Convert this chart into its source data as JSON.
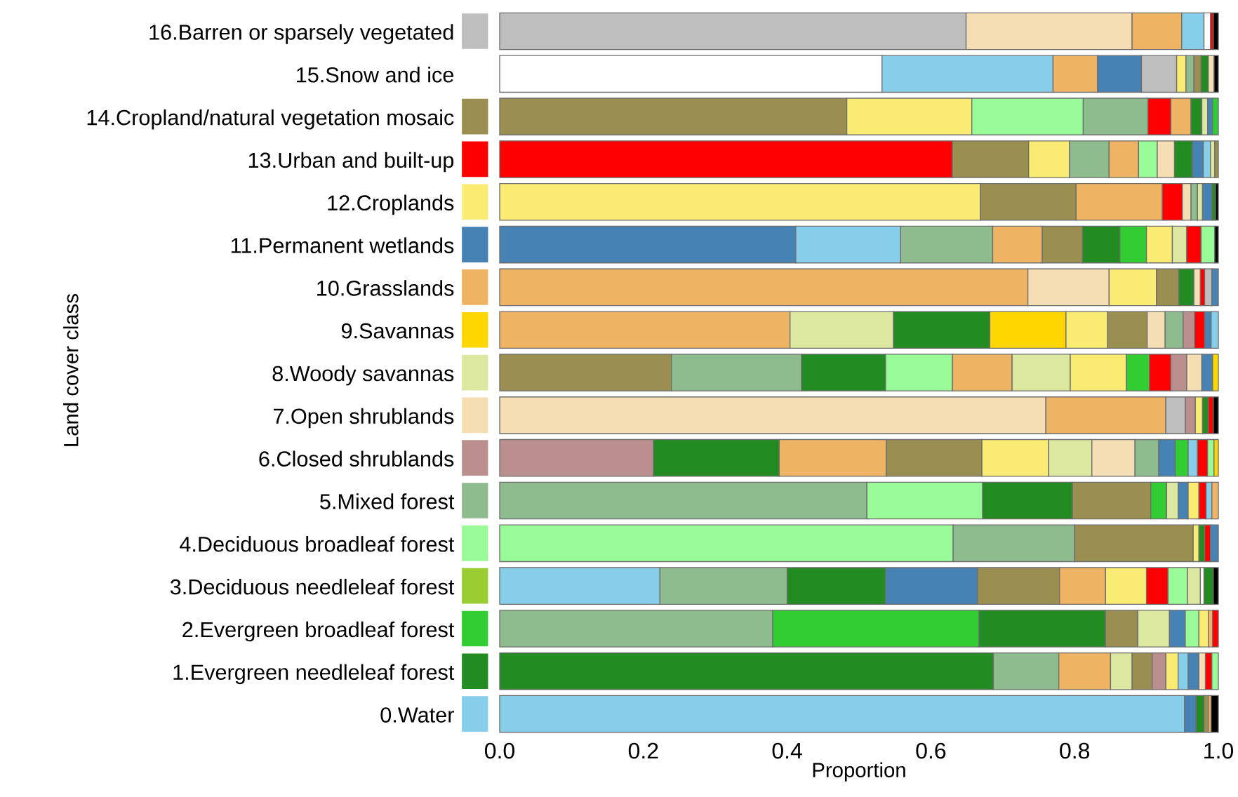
{
  "chart_data": {
    "type": "bar",
    "orientation": "horizontal",
    "stacked": true,
    "xlabel": "Proportion",
    "ylabel": "Land cover class",
    "categories": [
      "16.Barren or sparsely vegetated",
      "15.Snow and ice",
      "14.Cropland/natural vegetation mosaic",
      "13.Urban and built-up",
      "12.Croplands",
      "11.Permanent wetlands",
      "10.Grasslands",
      "9.Savannas",
      "8.Woody savannas",
      "7.Open shrublands",
      "6.Closed shrublands",
      "5.Mixed forest",
      "4.Deciduous broadleaf forest",
      "3.Deciduous needleleaf forest",
      "2.Evergreen broadleaf forest",
      "1.Evergreen needleleaf forest",
      "0.Water"
    ],
    "colors": [
      "#bebebe",
      "#ffffff",
      "#9a8f50",
      "#ff0000",
      "#faeb73",
      "#4682b4",
      "#eeb464",
      "#ffd700",
      "#dce8a0",
      "#f5deb3",
      "#bc8f8f",
      "#8fbc8f",
      "#98fb98",
      "#9acd32",
      "#32cd32",
      "#228b22",
      "#87ceeb"
    ],
    "xlim": [
      0,
      1
    ],
    "xticks": [
      {
        "value": 0,
        "label": "0.0"
      },
      {
        "value": 0.2,
        "label": "0.2"
      },
      {
        "value": 0.4,
        "label": "0.4"
      },
      {
        "value": 0.6,
        "label": "0.6"
      },
      {
        "value": 0.8,
        "label": "0.8"
      },
      {
        "value": 1,
        "label": "1.0"
      }
    ],
    "series": [
      {
        "values": [
          0.649,
          0.532,
          0.483,
          0.63,
          0.669,
          0.412,
          0.735,
          0.404,
          0.239,
          0.76,
          0.214,
          0.511,
          0.631,
          0.223,
          0.38,
          0.687,
          0.953
        ],
        "colors": [
          "#bebebe",
          "#ffffff",
          "#9a8f50",
          "#ff0000",
          "#faeb73",
          "#4682b4",
          "#eeb464",
          "#eeb464",
          "#9a8f50",
          "#f5deb3",
          "#bc8f8f",
          "#8fbc8f",
          "#98fb98",
          "#87ceeb",
          "#8fbc8f",
          "#228b22",
          "#87ceeb"
        ]
      },
      {
        "values": [
          0.231,
          0.238,
          0.174,
          0.106,
          0.133,
          0.146,
          0.113,
          0.144,
          0.181,
          0.167,
          0.175,
          0.161,
          0.169,
          0.177,
          0.287,
          0.091,
          0.016
        ],
        "colors": [
          "#f5deb3",
          "#87ceeb",
          "#faeb73",
          "#9a8f50",
          "#9a8f50",
          "#87ceeb",
          "#f5deb3",
          "#dce8a0",
          "#8fbc8f",
          "#eeb464",
          "#228b22",
          "#98fb98",
          "#8fbc8f",
          "#8fbc8f",
          "#32cd32",
          "#8fbc8f",
          "#4682b4"
        ]
      },
      {
        "values": [
          0.069,
          0.062,
          0.155,
          0.057,
          0.12,
          0.128,
          0.066,
          0.134,
          0.117,
          0.027,
          0.149,
          0.125,
          0.165,
          0.137,
          0.176,
          0.072,
          0.011
        ],
        "colors": [
          "#eeb464",
          "#eeb464",
          "#98fb98",
          "#faeb73",
          "#eeb464",
          "#8fbc8f",
          "#faeb73",
          "#228b22",
          "#228b22",
          "#bebebe",
          "#eeb464",
          "#228b22",
          "#9a8f50",
          "#228b22",
          "#228b22",
          "#eeb464",
          "#228b22"
        ]
      },
      {
        "values": [
          0.031,
          0.061,
          0.09,
          0.055,
          0.028,
          0.069,
          0.031,
          0.106,
          0.093,
          0.014,
          0.133,
          0.109,
          0.008,
          0.128,
          0.045,
          0.03,
          0.006
        ],
        "colors": [
          "#87ceeb",
          "#4682b4",
          "#8fbc8f",
          "#8fbc8f",
          "#ff0000",
          "#eeb464",
          "#9a8f50",
          "#ffd700",
          "#98fb98",
          "#bc8f8f",
          "#9a8f50",
          "#9a8f50",
          "#faeb73",
          "#4682b4",
          "#9a8f50",
          "#dce8a0",
          "#9a8f50"
        ]
      },
      {
        "values": [
          0.009,
          0.049,
          0.032,
          0.041,
          0.012,
          0.056,
          0.021,
          0.058,
          0.083,
          0.01,
          0.093,
          0.022,
          0.008,
          0.114,
          0.044,
          0.028,
          0.004
        ],
        "colors": [
          "#ffffff",
          "#bebebe",
          "#ff0000",
          "#eeb464",
          "#f5deb3",
          "#9a8f50",
          "#228b22",
          "#faeb73",
          "#eeb464",
          "#faeb73",
          "#faeb73",
          "#32cd32",
          "#228b22",
          "#9a8f50",
          "#dce8a0",
          "#9a8f50",
          "#eeb464"
        ]
      },
      {
        "values": [
          0.004,
          0.013,
          0.028,
          0.026,
          0.009,
          0.052,
          0.009,
          0.055,
          0.081,
          0.008,
          0.06,
          0.016,
          0.008,
          0.064,
          0.022,
          0.019,
          0.01
        ],
        "colors": [
          "#ff0000",
          "#faeb73",
          "#eeb464",
          "#98fb98",
          "#8fbc8f",
          "#228b22",
          "#f5deb3",
          "#9a8f50",
          "#dce8a0",
          "#228b22",
          "#dce8a0",
          "#dce8a0",
          "#ff0000",
          "#eeb464",
          "#4682b4",
          "#bc8f8f",
          "#000000"
        ]
      },
      {
        "values": [
          0.007,
          0.011,
          0.015,
          0.024,
          0.007,
          0.037,
          0.006,
          0.025,
          0.078,
          0.007,
          0.06,
          0.014,
          0.011,
          0.057,
          0.019,
          0.017,
          null
        ],
        "colors": [
          "#000000",
          "#8fbc8f",
          "#228b22",
          "#f5deb3",
          "#dce8a0",
          "#32cd32",
          "#ff0000",
          "#f5deb3",
          "#faeb73",
          "#ff0000",
          "#f5deb3",
          "#4682b4",
          "#4682b4",
          "#faeb73",
          "#98fb98",
          "#faeb73",
          null
        ]
      },
      {
        "values": [
          null,
          0.01,
          0.008,
          0.025,
          0.013,
          0.036,
          0.01,
          0.025,
          0.032,
          0.007,
          0.033,
          0.015,
          null,
          0.03,
          0.013,
          0.014,
          null
        ],
        "colors": [
          null,
          "#9a8f50",
          "#dce8a0",
          "#228b22",
          "#4682b4",
          "#faeb73",
          "#bebebe",
          "#8fbc8f",
          "#32cd32",
          "#000000",
          "#8fbc8f",
          "#faeb73",
          null,
          "#ff0000",
          "#faeb73",
          "#87ceeb",
          null
        ]
      },
      {
        "values": [
          null,
          0.01,
          0.007,
          0.015,
          0.005,
          0.02,
          0.009,
          0.016,
          0.03,
          null,
          0.023,
          0.01,
          null,
          0.027,
          0.006,
          0.015,
          null
        ],
        "colors": [
          null,
          "#228b22",
          "#4682b4",
          "#4682b4",
          "#228b22",
          "#dce8a0",
          "#4682b4",
          "#bc8f8f",
          "#ff0000",
          null,
          "#4682b4",
          "#ff0000",
          null,
          "#98fb98",
          "#eeb464",
          "#4682b4",
          null
        ]
      },
      {
        "values": [
          null,
          0.008,
          0.008,
          0.01,
          0.004,
          0.02,
          null,
          0.014,
          0.022,
          null,
          0.018,
          0.008,
          null,
          0.018,
          0.008,
          0.009,
          null
        ],
        "colors": [
          null,
          "#f5deb3",
          "#32cd32",
          "#87ceeb",
          "#000000",
          "#ff0000",
          null,
          "#ff0000",
          "#bc8f8f",
          null,
          "#32cd32",
          "#87ceeb",
          null,
          "#dce8a0",
          "#ff0000",
          "#f5deb3",
          null
        ]
      },
      {
        "values": [
          null,
          0.006,
          null,
          0.006,
          null,
          0.019,
          null,
          0.009,
          0.021,
          null,
          0.013,
          0.009,
          null,
          0.005,
          null,
          0.009,
          null
        ],
        "colors": [
          null,
          "#000000",
          null,
          "#dce8a0",
          null,
          "#98fb98",
          null,
          "#4682b4",
          "#f5deb3",
          null,
          "#87ceeb",
          "#eeb464",
          null,
          "#ffffff",
          null,
          "#ff0000",
          null
        ]
      },
      {
        "values": [
          null,
          null,
          null,
          0.005,
          null,
          0.005,
          null,
          0.01,
          0.015,
          null,
          0.014,
          null,
          null,
          0.013,
          null,
          0.009,
          null
        ],
        "colors": [
          null,
          null,
          null,
          "#9a8f50",
          null,
          "#000000",
          null,
          "#87ceeb",
          "#4682b4",
          null,
          "#ff0000",
          null,
          null,
          "#228b22",
          null,
          "#98fb98",
          null
        ]
      },
      {
        "values": [
          null,
          null,
          null,
          null,
          null,
          null,
          null,
          null,
          0.008,
          null,
          0.009,
          null,
          null,
          0.007,
          null,
          null,
          null
        ],
        "colors": [
          null,
          null,
          null,
          null,
          null,
          null,
          null,
          null,
          "#ffd700",
          null,
          "#98fb98",
          null,
          null,
          "#000000",
          null,
          null,
          null
        ]
      },
      {
        "values": [
          null,
          null,
          null,
          null,
          null,
          null,
          null,
          null,
          null,
          null,
          0.006,
          null,
          null,
          null,
          null,
          null,
          null
        ],
        "colors": [
          null,
          null,
          null,
          null,
          null,
          null,
          null,
          null,
          null,
          null,
          "#ffd700",
          null,
          null,
          null,
          null,
          null,
          null
        ]
      }
    ]
  }
}
